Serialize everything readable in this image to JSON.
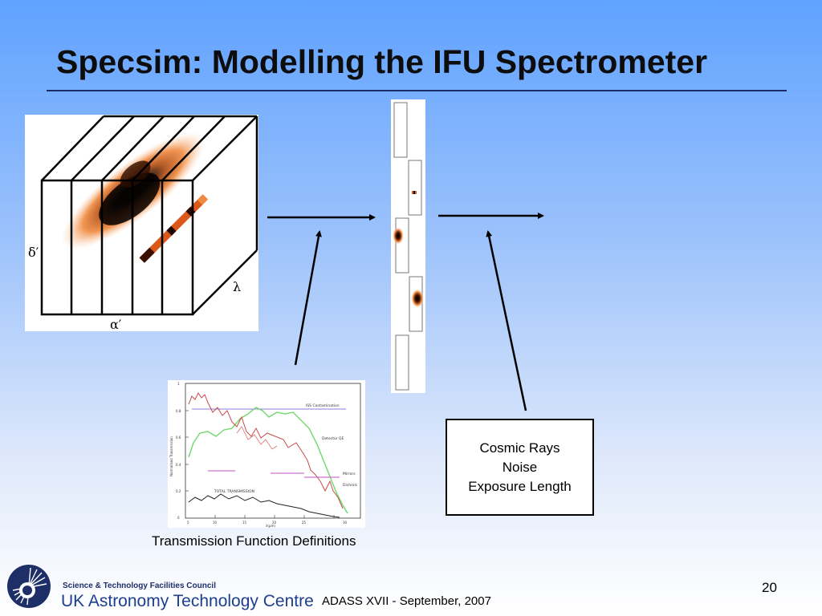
{
  "slide": {
    "title": "Specsim: Modelling the IFU Spectrometer",
    "page_number": "20",
    "footer": "ADASS XVII - September, 2007"
  },
  "cube": {
    "axis_delta": "δ′",
    "axis_alpha": "α′",
    "axis_lambda": "λ"
  },
  "transmission_plot": {
    "caption": "Transmission Function Definitions",
    "legend_labels": [
      "ISS Contamination",
      "Detector QE",
      "Mirrors",
      "Dichroic",
      "TOTAL TRANSMISSION"
    ],
    "ylabel": "Normalised Transmission",
    "xlabel": "λ(μm)",
    "y_ticks": [
      "1",
      "0.8",
      "0.6",
      "0.4",
      "0.2",
      "0"
    ],
    "x_ticks": [
      "5",
      "10",
      "15",
      "20",
      "25",
      "30"
    ]
  },
  "noise_box": {
    "lines": [
      "Cosmic Rays",
      "Noise",
      "Exposure Length"
    ]
  },
  "logo": {
    "org": "Science & Technology Facilities Council",
    "centre": "UK Astronomy Technology Centre"
  },
  "colors": {
    "accent_orange": "#f07a20",
    "title_rule": "#1b2a66"
  }
}
